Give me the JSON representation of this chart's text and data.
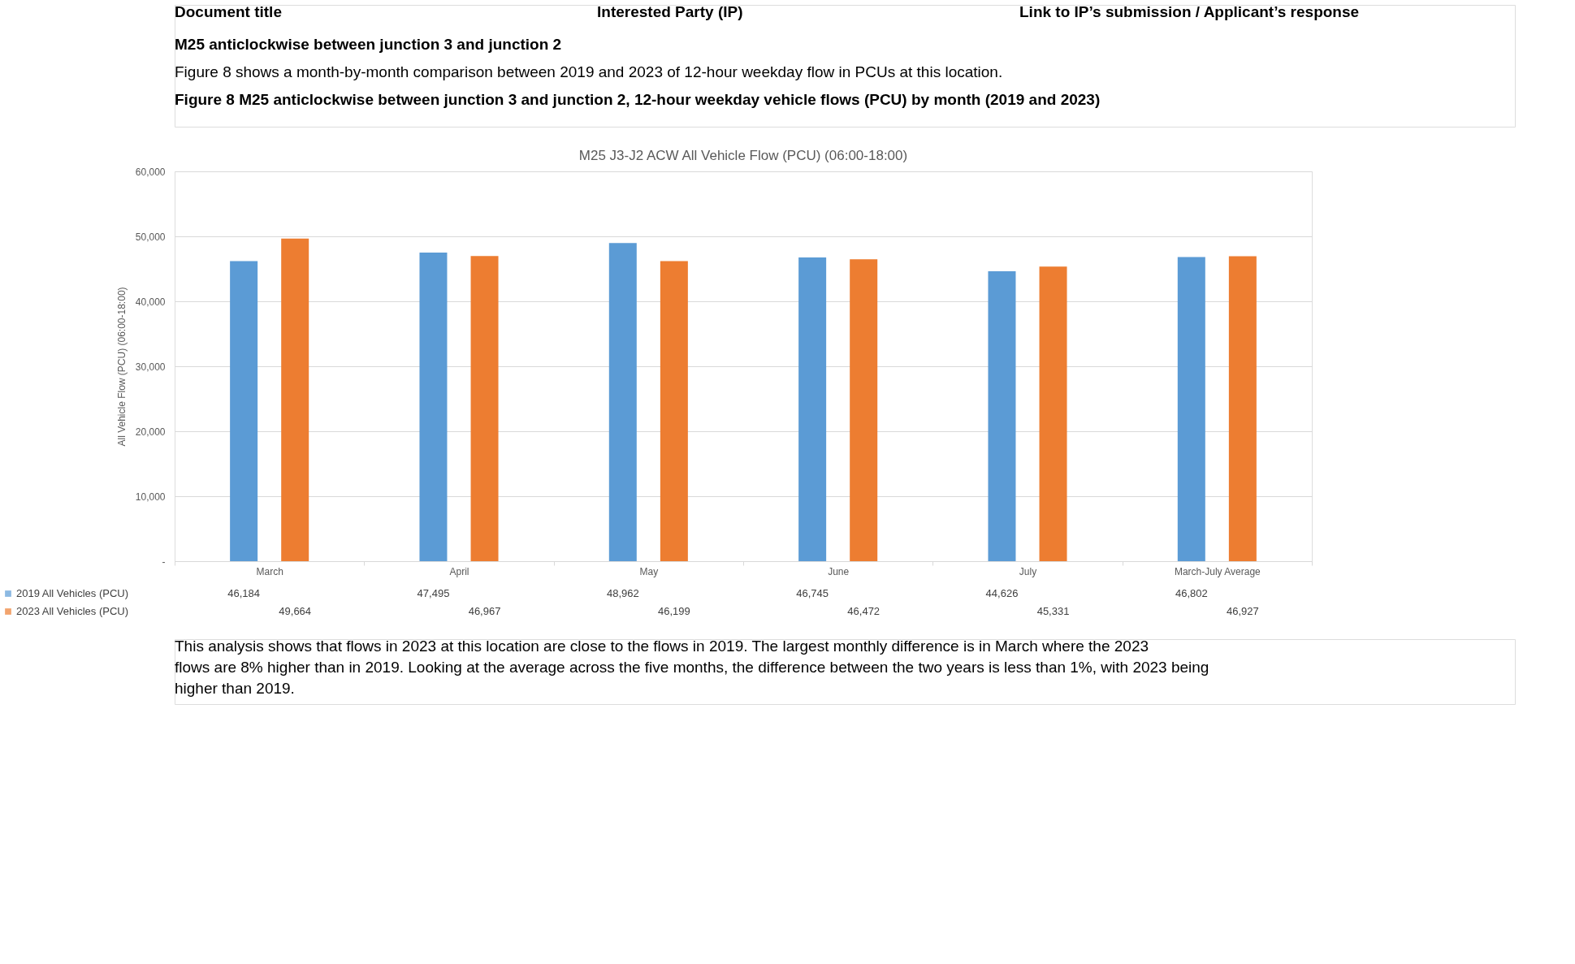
{
  "chart_data": {
    "type": "bar",
    "title": "M25 J3-J2 ACW All Vehicle Flow (PCU) (06:00-18:00)",
    "ylabel": "All Vehicle Flow (PCU) (06:00-18:00)",
    "categories": [
      "March",
      "April",
      "May",
      "June",
      "July",
      "March-July Average"
    ],
    "series": [
      {
        "name": "2019 All Vehicles (PCU)",
        "color": "#5b9bd5",
        "values": [
          46184,
          47495,
          48962,
          46745,
          44626,
          46802
        ],
        "value_labels": [
          "46,184",
          "47,495",
          "48,962",
          "46,745",
          "44,626",
          "46,802"
        ]
      },
      {
        "name": "2023 All Vehicles (PCU)",
        "color": "#ed7d31",
        "values": [
          49664,
          46967,
          46199,
          46472,
          45331,
          46927
        ],
        "value_labels": [
          "49,664",
          "46,967",
          "46,199",
          "46,472",
          "45,331",
          "46,927"
        ]
      }
    ],
    "ylim": [
      0,
      60000
    ],
    "yticks": [
      {
        "value": 0,
        "label": "-"
      },
      {
        "value": 10000,
        "label": "10,000"
      },
      {
        "value": 20000,
        "label": "20,000"
      },
      {
        "value": 30000,
        "label": "30,000"
      },
      {
        "value": 40000,
        "label": "40,000"
      },
      {
        "value": 50000,
        "label": "50,000"
      },
      {
        "value": 60000,
        "label": "60,000"
      }
    ],
    "grid": "y",
    "legend": "bottom",
    "annotations": [
      "Document title",
      "Interested Party (IP)",
      "Link to IP’s submission / Applicant’s response",
      "M25 anticlockwise between junction 3 and junction 2",
      "Figure 8 shows a month-by-month comparison between 2019 and 2023 of 12-hour weekday flow in PCUs at this location.",
      "Figure 8 M25 anticlockwise between junction 3 and junction 2, 12-hour weekday vehicle flows (PCU) by month (2019 and 2023)",
      "This analysis shows that flows in 2023 at this location are close to the flows in 2019. The largest monthly difference is in March where the 2023 flows are 8% higher than in 2019. Looking at the average across the five months, the difference between the two years is less than 1%, with 2023 being higher than 2019."
    ]
  }
}
